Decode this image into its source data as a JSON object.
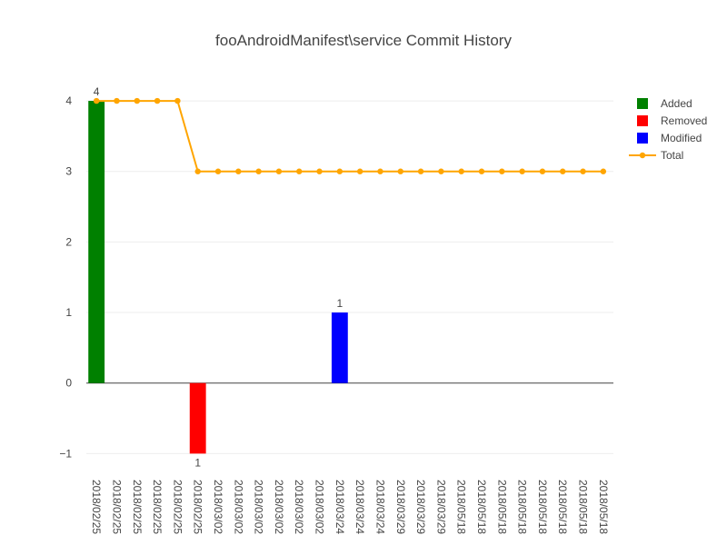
{
  "chart_data": {
    "type": "bar",
    "title": "fooAndroidManifest\\service Commit History",
    "xlabel": "",
    "ylabel": "",
    "ylim": [
      -1.15,
      4.4
    ],
    "yticks": [
      -1,
      0,
      1,
      2,
      3,
      4
    ],
    "ytick_labels": [
      "−1",
      "0",
      "1",
      "2",
      "3",
      "4"
    ],
    "grid": true,
    "legend_position": "top-right",
    "categories": [
      "2018/02/25",
      "2018/02/25",
      "2018/02/25",
      "2018/02/25",
      "2018/02/25",
      "2018/02/25",
      "2018/03/02",
      "2018/03/02",
      "2018/03/02",
      "2018/03/02",
      "2018/03/02",
      "2018/03/02",
      "2018/03/24",
      "2018/03/24",
      "2018/03/24",
      "2018/03/29",
      "2018/03/29",
      "2018/03/29",
      "2018/05/18",
      "2018/05/18",
      "2018/05/18",
      "2018/05/18",
      "2018/05/18",
      "2018/05/18",
      "2018/05/18",
      "2018/05/18"
    ],
    "series": [
      {
        "name": "Added",
        "type": "bar",
        "color": "#008000",
        "values": [
          4,
          0,
          0,
          0,
          0,
          0,
          0,
          0,
          0,
          0,
          0,
          0,
          0,
          0,
          0,
          0,
          0,
          0,
          0,
          0,
          0,
          0,
          0,
          0,
          0,
          0
        ],
        "labels": [
          "4",
          "",
          "",
          "",
          "",
          "",
          "",
          "",
          "",
          "",
          "",
          "",
          "",
          "",
          "",
          "",
          "",
          "",
          "",
          "",
          "",
          "",
          "",
          "",
          "",
          ""
        ]
      },
      {
        "name": "Removed",
        "type": "bar",
        "color": "#ff0000",
        "values": [
          0,
          0,
          0,
          0,
          0,
          -1,
          0,
          0,
          0,
          0,
          0,
          0,
          0,
          0,
          0,
          0,
          0,
          0,
          0,
          0,
          0,
          0,
          0,
          0,
          0,
          0
        ],
        "labels": [
          "",
          "",
          "",
          "",
          "",
          "1",
          "",
          "",
          "",
          "",
          "",
          "",
          "",
          "",
          "",
          "",
          "",
          "",
          "",
          "",
          "",
          "",
          "",
          "",
          "",
          ""
        ]
      },
      {
        "name": "Modified",
        "type": "bar",
        "color": "#0000ff",
        "values": [
          0,
          0,
          0,
          0,
          0,
          0,
          0,
          0,
          0,
          0,
          0,
          0,
          1,
          0,
          0,
          0,
          0,
          0,
          0,
          0,
          0,
          0,
          0,
          0,
          0,
          0
        ],
        "labels": [
          "",
          "",
          "",
          "",
          "",
          "",
          "",
          "",
          "",
          "",
          "",
          "",
          "1",
          "",
          "",
          "",
          "",
          "",
          "",
          "",
          "",
          "",
          "",
          "",
          "",
          ""
        ]
      },
      {
        "name": "Total",
        "type": "line",
        "color": "#ffa500",
        "values": [
          4,
          4,
          4,
          4,
          4,
          3,
          3,
          3,
          3,
          3,
          3,
          3,
          3,
          3,
          3,
          3,
          3,
          3,
          3,
          3,
          3,
          3,
          3,
          3,
          3,
          3
        ]
      }
    ]
  }
}
